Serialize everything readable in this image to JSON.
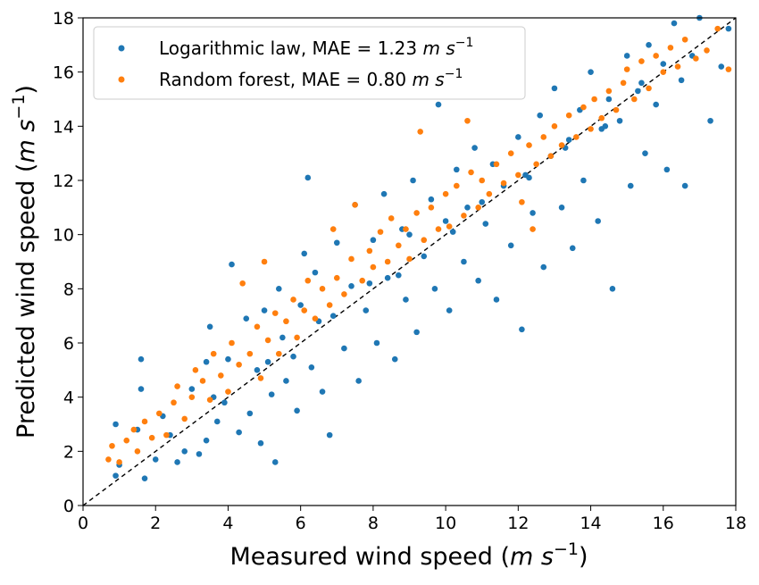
{
  "chart_data": {
    "type": "scatter",
    "xlabel": "Measured wind speed",
    "ylabel": "Predicted wind speed",
    "unit": {
      "base": "m s",
      "exp": "−1"
    },
    "xlim": [
      0,
      18
    ],
    "ylim": [
      0,
      18
    ],
    "xticks": [
      "0",
      "2",
      "4",
      "6",
      "8",
      "10",
      "12",
      "14",
      "16",
      "18"
    ],
    "yticks": [
      "0",
      "2",
      "4",
      "6",
      "8",
      "10",
      "12",
      "14",
      "16",
      "18"
    ],
    "grid": false,
    "legend_position": "top-left",
    "reference_line": {
      "type": "identity",
      "style": "dashed",
      "color": "#000000"
    },
    "series": [
      {
        "name": "Logarithmic law, MAE = 1.23",
        "color": "#1f77b4",
        "mae": 1.23,
        "points": [
          [
            0.9,
            1.1
          ],
          [
            0.9,
            3.0
          ],
          [
            1.0,
            1.5
          ],
          [
            1.5,
            2.8
          ],
          [
            1.6,
            5.4
          ],
          [
            1.7,
            1.0
          ],
          [
            1.6,
            4.3
          ],
          [
            2.0,
            1.7
          ],
          [
            2.2,
            3.3
          ],
          [
            2.6,
            1.6
          ],
          [
            2.8,
            2.0
          ],
          [
            3.0,
            4.3
          ],
          [
            3.2,
            1.9
          ],
          [
            3.4,
            2.4
          ],
          [
            3.4,
            5.3
          ],
          [
            3.5,
            6.6
          ],
          [
            3.7,
            3.1
          ],
          [
            3.9,
            3.8
          ],
          [
            4.0,
            5.4
          ],
          [
            4.1,
            8.9
          ],
          [
            4.3,
            2.7
          ],
          [
            4.5,
            6.9
          ],
          [
            4.6,
            3.4
          ],
          [
            4.8,
            5.0
          ],
          [
            4.9,
            2.3
          ],
          [
            5.0,
            7.2
          ],
          [
            5.2,
            4.1
          ],
          [
            5.3,
            1.6
          ],
          [
            5.4,
            8.0
          ],
          [
            5.5,
            6.2
          ],
          [
            5.6,
            4.6
          ],
          [
            5.8,
            5.5
          ],
          [
            5.9,
            3.5
          ],
          [
            6.0,
            7.4
          ],
          [
            6.1,
            9.3
          ],
          [
            6.2,
            12.1
          ],
          [
            6.3,
            5.1
          ],
          [
            6.4,
            8.6
          ],
          [
            6.6,
            4.2
          ],
          [
            6.8,
            2.6
          ],
          [
            6.9,
            7.0
          ],
          [
            7.0,
            9.7
          ],
          [
            7.2,
            5.8
          ],
          [
            7.4,
            8.1
          ],
          [
            7.5,
            11.1
          ],
          [
            7.6,
            4.6
          ],
          [
            7.8,
            7.2
          ],
          [
            8.0,
            9.8
          ],
          [
            8.1,
            6.0
          ],
          [
            8.3,
            11.5
          ],
          [
            8.4,
            8.4
          ],
          [
            8.6,
            5.4
          ],
          [
            8.8,
            10.2
          ],
          [
            8.9,
            7.6
          ],
          [
            9.1,
            12.0
          ],
          [
            9.2,
            6.4
          ],
          [
            9.4,
            9.2
          ],
          [
            9.6,
            11.3
          ],
          [
            9.7,
            8.0
          ],
          [
            9.8,
            14.8
          ],
          [
            10.0,
            10.5
          ],
          [
            10.1,
            7.2
          ],
          [
            10.3,
            12.4
          ],
          [
            10.5,
            9.0
          ],
          [
            10.6,
            11.0
          ],
          [
            10.8,
            13.2
          ],
          [
            10.9,
            8.3
          ],
          [
            11.1,
            10.4
          ],
          [
            11.3,
            12.6
          ],
          [
            11.4,
            7.6
          ],
          [
            11.6,
            11.8
          ],
          [
            11.8,
            9.6
          ],
          [
            12.0,
            13.6
          ],
          [
            12.1,
            6.5
          ],
          [
            12.2,
            12.2
          ],
          [
            12.4,
            10.8
          ],
          [
            12.6,
            14.4
          ],
          [
            12.7,
            8.8
          ],
          [
            12.9,
            12.9
          ],
          [
            13.0,
            15.4
          ],
          [
            13.2,
            11.0
          ],
          [
            13.4,
            13.5
          ],
          [
            13.5,
            9.5
          ],
          [
            13.7,
            14.6
          ],
          [
            13.8,
            12.0
          ],
          [
            14.0,
            16.0
          ],
          [
            14.2,
            10.5
          ],
          [
            14.3,
            13.9
          ],
          [
            14.5,
            15.0
          ],
          [
            14.6,
            8.0
          ],
          [
            14.8,
            14.2
          ],
          [
            15.0,
            16.6
          ],
          [
            15.1,
            11.8
          ],
          [
            15.3,
            15.3
          ],
          [
            15.5,
            13.0
          ],
          [
            15.6,
            17.0
          ],
          [
            15.8,
            14.8
          ],
          [
            16.0,
            16.3
          ],
          [
            16.1,
            12.4
          ],
          [
            16.3,
            17.8
          ],
          [
            16.5,
            15.7
          ],
          [
            16.6,
            11.8
          ],
          [
            16.8,
            16.6
          ],
          [
            17.0,
            18.0
          ],
          [
            17.3,
            14.2
          ],
          [
            17.6,
            16.2
          ],
          [
            17.8,
            17.6
          ],
          [
            9.0,
            10.0
          ],
          [
            10.2,
            10.1
          ],
          [
            11.0,
            11.2
          ],
          [
            12.3,
            12.1
          ],
          [
            13.3,
            13.2
          ],
          [
            7.9,
            8.2
          ],
          [
            6.5,
            6.8
          ],
          [
            5.1,
            5.3
          ],
          [
            14.4,
            14.0
          ],
          [
            15.4,
            15.6
          ],
          [
            3.6,
            4.0
          ],
          [
            2.4,
            2.6
          ],
          [
            8.7,
            8.5
          ]
        ]
      },
      {
        "name": "Random forest, MAE = 0.80",
        "color": "#ff7f0e",
        "mae": 0.8,
        "points": [
          [
            0.7,
            1.7
          ],
          [
            0.8,
            2.2
          ],
          [
            1.0,
            1.6
          ],
          [
            1.2,
            2.4
          ],
          [
            1.4,
            2.8
          ],
          [
            1.5,
            2.0
          ],
          [
            1.7,
            3.1
          ],
          [
            1.9,
            2.5
          ],
          [
            2.1,
            3.4
          ],
          [
            2.3,
            2.6
          ],
          [
            2.5,
            3.8
          ],
          [
            2.6,
            4.4
          ],
          [
            2.8,
            3.2
          ],
          [
            3.0,
            4.0
          ],
          [
            3.1,
            5.0
          ],
          [
            3.3,
            4.6
          ],
          [
            3.5,
            3.9
          ],
          [
            3.6,
            5.6
          ],
          [
            3.8,
            4.8
          ],
          [
            4.0,
            4.2
          ],
          [
            4.1,
            6.0
          ],
          [
            4.3,
            5.2
          ],
          [
            4.4,
            8.2
          ],
          [
            4.6,
            5.6
          ],
          [
            4.8,
            6.6
          ],
          [
            4.9,
            4.7
          ],
          [
            5.0,
            9.0
          ],
          [
            5.1,
            6.1
          ],
          [
            5.3,
            7.1
          ],
          [
            5.4,
            5.6
          ],
          [
            5.6,
            6.8
          ],
          [
            5.8,
            7.6
          ],
          [
            5.9,
            6.2
          ],
          [
            6.1,
            7.2
          ],
          [
            6.2,
            8.3
          ],
          [
            6.4,
            6.9
          ],
          [
            6.6,
            8.0
          ],
          [
            6.8,
            7.4
          ],
          [
            6.9,
            10.2
          ],
          [
            7.0,
            8.4
          ],
          [
            7.2,
            7.8
          ],
          [
            7.4,
            9.1
          ],
          [
            7.5,
            11.1
          ],
          [
            7.7,
            8.3
          ],
          [
            7.9,
            9.4
          ],
          [
            8.0,
            8.8
          ],
          [
            8.2,
            10.1
          ],
          [
            8.4,
            9.0
          ],
          [
            8.5,
            10.6
          ],
          [
            8.7,
            9.6
          ],
          [
            8.9,
            10.2
          ],
          [
            9.0,
            9.1
          ],
          [
            9.2,
            10.8
          ],
          [
            9.4,
            9.8
          ],
          [
            9.6,
            11.0
          ],
          [
            9.8,
            10.2
          ],
          [
            10.0,
            11.5
          ],
          [
            10.1,
            10.3
          ],
          [
            10.3,
            11.8
          ],
          [
            10.5,
            10.7
          ],
          [
            10.7,
            12.3
          ],
          [
            10.9,
            11.0
          ],
          [
            11.0,
            12.0
          ],
          [
            11.2,
            11.5
          ],
          [
            11.4,
            12.6
          ],
          [
            11.6,
            11.9
          ],
          [
            11.8,
            13.0
          ],
          [
            12.0,
            12.2
          ],
          [
            12.1,
            11.2
          ],
          [
            12.3,
            13.3
          ],
          [
            12.5,
            12.6
          ],
          [
            12.7,
            13.6
          ],
          [
            12.9,
            12.9
          ],
          [
            13.0,
            14.0
          ],
          [
            13.2,
            13.3
          ],
          [
            13.4,
            14.4
          ],
          [
            13.6,
            13.6
          ],
          [
            13.8,
            14.7
          ],
          [
            14.0,
            13.9
          ],
          [
            14.1,
            15.0
          ],
          [
            14.3,
            14.3
          ],
          [
            14.5,
            15.3
          ],
          [
            14.7,
            14.6
          ],
          [
            14.9,
            15.6
          ],
          [
            15.0,
            16.1
          ],
          [
            15.2,
            15.0
          ],
          [
            15.4,
            16.4
          ],
          [
            15.6,
            15.4
          ],
          [
            15.8,
            16.6
          ],
          [
            16.0,
            16.0
          ],
          [
            16.2,
            16.9
          ],
          [
            16.4,
            16.2
          ],
          [
            16.6,
            17.2
          ],
          [
            16.9,
            16.5
          ],
          [
            17.2,
            16.8
          ],
          [
            17.5,
            17.6
          ],
          [
            17.8,
            16.1
          ],
          [
            9.3,
            13.8
          ],
          [
            10.6,
            14.2
          ],
          [
            12.4,
            10.2
          ]
        ]
      }
    ]
  }
}
